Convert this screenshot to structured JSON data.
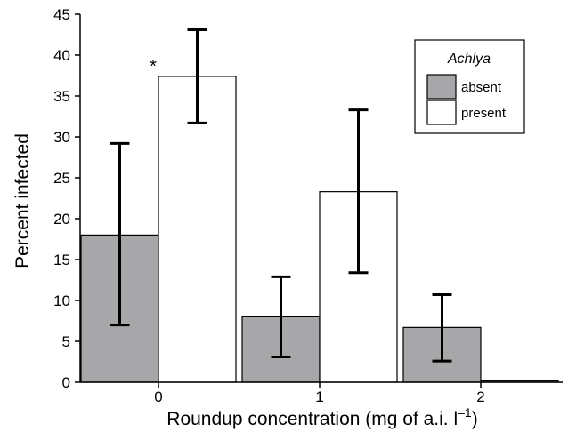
{
  "chart_data": {
    "type": "bar",
    "title": "",
    "xlabel": "Roundup concentration (mg of a.i. l",
    "xlabel_superscript": "–1",
    "xlabel_suffix": ")",
    "ylabel": "Percent infected",
    "categories": [
      "0",
      "1",
      "2"
    ],
    "ylim": [
      0,
      45
    ],
    "yticks": [
      0,
      5,
      10,
      15,
      20,
      25,
      30,
      35,
      40,
      45
    ],
    "grid": false,
    "legend": {
      "title": "Achlya",
      "placement": "top-right"
    },
    "series": [
      {
        "name": "absent",
        "color": "#a7a7a9",
        "values": [
          18.0,
          8.0,
          6.7
        ],
        "error_low": [
          7.0,
          3.1,
          2.6
        ],
        "error_high": [
          29.2,
          12.9,
          10.7
        ]
      },
      {
        "name": "present",
        "color": "#ffffff",
        "values": [
          37.4,
          23.3,
          0.15
        ],
        "error_low": [
          31.7,
          13.4,
          null
        ],
        "error_high": [
          43.1,
          33.3,
          null
        ]
      }
    ],
    "annotations": [
      {
        "text": "*",
        "category": "0",
        "series": "present"
      }
    ]
  }
}
